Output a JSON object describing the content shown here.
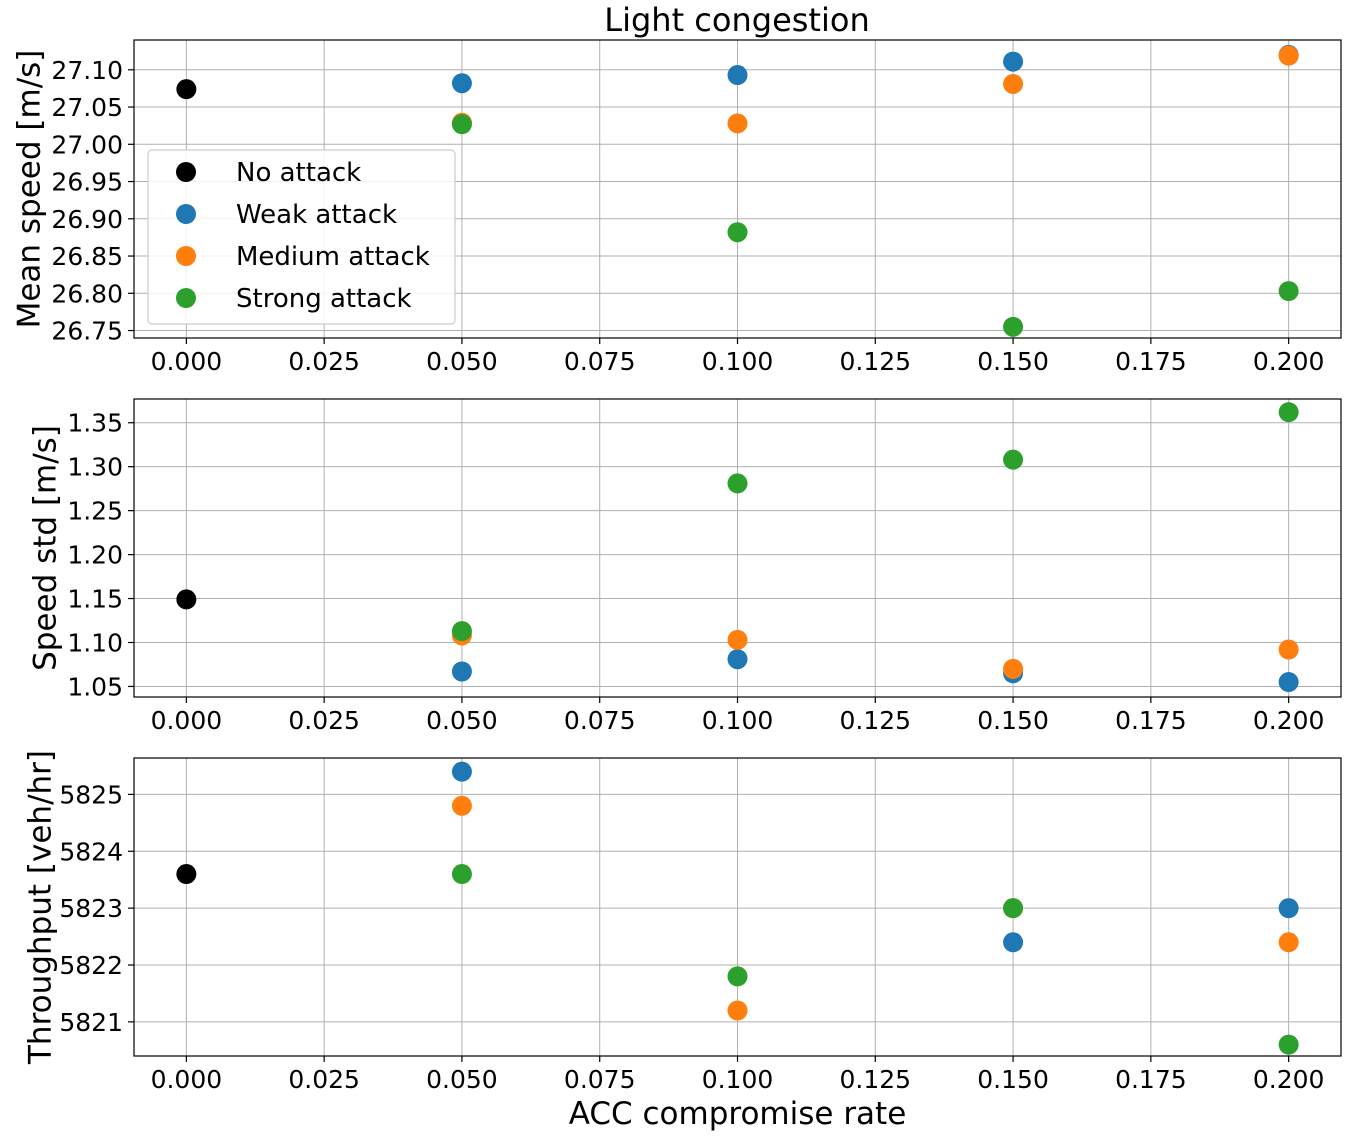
{
  "figure_title": "Light congestion",
  "legend": [
    {
      "label": "No attack",
      "color": "#000000"
    },
    {
      "label": "Weak attack",
      "color": "#1f77b4"
    },
    {
      "label": "Medium attack",
      "color": "#ff7f0e"
    },
    {
      "label": "Strong attack",
      "color": "#2ca02c"
    }
  ],
  "chart_data": [
    {
      "type": "scatter",
      "title": "Light congestion",
      "xlabel": "",
      "ylabel": "Mean speed [m/s]",
      "xlim": [
        -0.0095,
        0.2095
      ],
      "ylim": [
        26.74,
        27.14
      ],
      "x_ticks": [
        0.0,
        0.025,
        0.05,
        0.075,
        0.1,
        0.125,
        0.15,
        0.175,
        0.2
      ],
      "x_tick_labels": [
        "0.000",
        "0.025",
        "0.050",
        "0.075",
        "0.100",
        "0.125",
        "0.150",
        "0.175",
        "0.200"
      ],
      "y_ticks": [
        26.75,
        26.8,
        26.85,
        26.9,
        26.95,
        27.0,
        27.05,
        27.1
      ],
      "y_tick_labels": [
        "26.75",
        "26.80",
        "26.85",
        "26.90",
        "26.95",
        "27.00",
        "27.05",
        "27.10"
      ],
      "grid": true,
      "legend": "upper-left",
      "series": [
        {
          "name": "No attack",
          "color": "#000000",
          "x": [
            0.0
          ],
          "y": [
            27.074
          ]
        },
        {
          "name": "Weak attack",
          "color": "#1f77b4",
          "x": [
            0.05,
            0.1,
            0.15,
            0.2
          ],
          "y": [
            27.082,
            27.093,
            27.111,
            27.12
          ]
        },
        {
          "name": "Medium attack",
          "color": "#ff7f0e",
          "x": [
            0.05,
            0.1,
            0.15,
            0.2
          ],
          "y": [
            27.029,
            27.028,
            27.081,
            27.119
          ]
        },
        {
          "name": "Strong attack",
          "color": "#2ca02c",
          "x": [
            0.05,
            0.1,
            0.15,
            0.2
          ],
          "y": [
            27.027,
            26.882,
            26.755,
            26.803
          ]
        }
      ]
    },
    {
      "type": "scatter",
      "title": "",
      "xlabel": "",
      "ylabel": "Speed std [m/s]",
      "xlim": [
        -0.0095,
        0.2095
      ],
      "ylim": [
        1.038,
        1.377
      ],
      "x_ticks": [
        0.0,
        0.025,
        0.05,
        0.075,
        0.1,
        0.125,
        0.15,
        0.175,
        0.2
      ],
      "x_tick_labels": [
        "0.000",
        "0.025",
        "0.050",
        "0.075",
        "0.100",
        "0.125",
        "0.150",
        "0.175",
        "0.200"
      ],
      "y_ticks": [
        1.05,
        1.1,
        1.15,
        1.2,
        1.25,
        1.3,
        1.35
      ],
      "y_tick_labels": [
        "1.05",
        "1.10",
        "1.15",
        "1.20",
        "1.25",
        "1.30",
        "1.35"
      ],
      "grid": true,
      "series": [
        {
          "name": "No attack",
          "color": "#000000",
          "x": [
            0.0
          ],
          "y": [
            1.149
          ]
        },
        {
          "name": "Weak attack",
          "color": "#1f77b4",
          "x": [
            0.05,
            0.1,
            0.15,
            0.2
          ],
          "y": [
            1.067,
            1.081,
            1.065,
            1.055
          ]
        },
        {
          "name": "Medium attack",
          "color": "#ff7f0e",
          "x": [
            0.05,
            0.1,
            0.15,
            0.2
          ],
          "y": [
            1.108,
            1.103,
            1.07,
            1.092
          ]
        },
        {
          "name": "Strong attack",
          "color": "#2ca02c",
          "x": [
            0.05,
            0.1,
            0.15,
            0.2
          ],
          "y": [
            1.113,
            1.281,
            1.308,
            1.362
          ]
        }
      ]
    },
    {
      "type": "scatter",
      "title": "",
      "xlabel": "ACC compromise rate",
      "ylabel": "Throughput [veh/hr]",
      "xlim": [
        -0.0095,
        0.2095
      ],
      "ylim": [
        5820.4,
        5825.64
      ],
      "x_ticks": [
        0.0,
        0.025,
        0.05,
        0.075,
        0.1,
        0.125,
        0.15,
        0.175,
        0.2
      ],
      "x_tick_labels": [
        "0.000",
        "0.025",
        "0.050",
        "0.075",
        "0.100",
        "0.125",
        "0.150",
        "0.175",
        "0.200"
      ],
      "y_ticks": [
        5821,
        5822,
        5823,
        5824,
        5825
      ],
      "y_tick_labels": [
        "5821",
        "5822",
        "5823",
        "5824",
        "5825"
      ],
      "grid": true,
      "series": [
        {
          "name": "No attack",
          "color": "#000000",
          "x": [
            0.0
          ],
          "y": [
            5823.6
          ]
        },
        {
          "name": "Weak attack",
          "color": "#1f77b4",
          "x": [
            0.05,
            0.15,
            0.2
          ],
          "y": [
            5825.4,
            5822.4,
            5823.0
          ]
        },
        {
          "name": "Medium attack",
          "color": "#ff7f0e",
          "x": [
            0.05,
            0.1,
            0.15,
            0.2
          ],
          "y": [
            5824.8,
            5821.2,
            5823.0,
            5822.4
          ]
        },
        {
          "name": "Strong attack",
          "color": "#2ca02c",
          "x": [
            0.05,
            0.1,
            0.15,
            0.2
          ],
          "y": [
            5823.6,
            5821.8,
            5823.0,
            5820.6
          ]
        }
      ]
    }
  ]
}
